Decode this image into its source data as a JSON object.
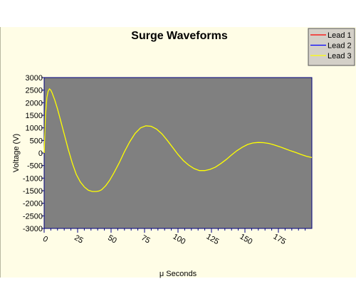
{
  "chart_data": {
    "type": "line",
    "title": "Surge Waveforms",
    "xlabel": "μ Seconds",
    "ylabel": "Voltage (V)",
    "xlim": [
      0,
      200
    ],
    "ylim": [
      -3000,
      3000
    ],
    "x_ticks": [
      0,
      25,
      50,
      75,
      100,
      125,
      150,
      175
    ],
    "y_ticks": [
      3000,
      2500,
      2000,
      1500,
      1000,
      500,
      0,
      -500,
      -1000,
      -1500,
      -2000,
      -2500,
      -3000
    ],
    "grid": false,
    "legend_position": "top-right",
    "plot_background": "#808080",
    "series": [
      {
        "name": "Lead 1",
        "color": "#ff0000",
        "values": []
      },
      {
        "name": "Lead 2",
        "color": "#0000ff",
        "values": []
      },
      {
        "name": "Lead 3",
        "color": "#ffff00",
        "x": [
          0,
          1,
          2,
          3,
          4,
          5,
          6,
          8,
          10,
          12,
          15,
          18,
          21,
          24,
          27,
          30,
          33,
          36,
          39,
          41,
          43,
          46,
          49,
          52,
          56,
          60,
          64,
          68,
          72,
          76,
          80,
          84,
          88,
          92,
          96,
          100,
          104,
          108,
          112,
          116,
          120,
          124,
          128,
          132,
          136,
          140,
          144,
          148,
          152,
          156,
          160,
          164,
          168,
          172,
          176,
          180,
          184,
          188,
          192,
          196,
          200
        ],
        "values": [
          0,
          1500,
          2200,
          2450,
          2550,
          2500,
          2380,
          2100,
          1750,
          1350,
          750,
          150,
          -400,
          -850,
          -1150,
          -1350,
          -1480,
          -1530,
          -1530,
          -1510,
          -1460,
          -1300,
          -1080,
          -800,
          -400,
          50,
          450,
          780,
          1000,
          1080,
          1060,
          950,
          760,
          500,
          220,
          -60,
          -300,
          -480,
          -620,
          -700,
          -700,
          -650,
          -560,
          -420,
          -260,
          -80,
          90,
          230,
          340,
          400,
          420,
          410,
          380,
          320,
          250,
          170,
          90,
          20,
          -60,
          -130,
          -180
        ]
      }
    ]
  }
}
